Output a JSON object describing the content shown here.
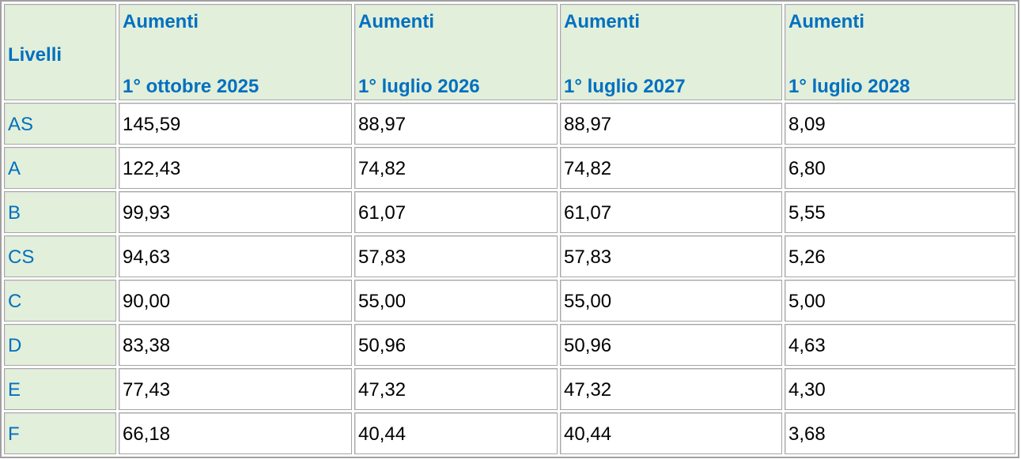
{
  "table": {
    "header": {
      "label": "Livelli",
      "columns": [
        {
          "top": "Aumenti",
          "bottom": "1° ottobre 2025"
        },
        {
          "top": "Aumenti",
          "bottom": "1° luglio 2026"
        },
        {
          "top": "Aumenti",
          "bottom": "1° luglio 2027"
        },
        {
          "top": "Aumenti",
          "bottom": "1° luglio 2028"
        }
      ]
    },
    "rows": [
      [
        "AS",
        "145,59",
        "88,97",
        "88,97",
        "8,09"
      ],
      [
        "A",
        "122,43",
        "74,82",
        "74,82",
        "6,80"
      ],
      [
        "B",
        "99,93",
        "61,07",
        "61,07",
        "5,55"
      ],
      [
        "CS",
        "94,63",
        "57,83",
        "57,83",
        "5,26"
      ],
      [
        "C",
        "90,00",
        "55,00",
        "55,00",
        "5,00"
      ],
      [
        "D",
        "83,38",
        "50,96",
        "50,96",
        "4,63"
      ],
      [
        "E",
        "77,43",
        "47,32",
        "47,32",
        "4,30"
      ],
      [
        "F",
        "66,18",
        "40,44",
        "40,44",
        "3,68"
      ]
    ]
  }
}
